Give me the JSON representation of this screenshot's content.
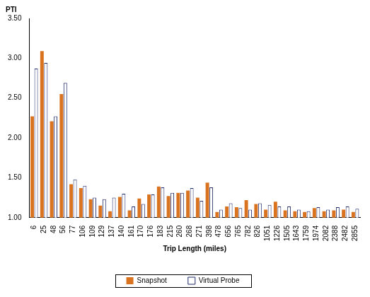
{
  "chart_data": {
    "type": "bar",
    "y_label": "PTI",
    "x_label": "Trip Length (miles)",
    "categories": [
      "6",
      "25",
      "48",
      "56",
      "77",
      "106",
      "109",
      "129",
      "137",
      "140",
      "161",
      "170",
      "176",
      "183",
      "215",
      "260",
      "268",
      "271",
      "398",
      "478",
      "656",
      "765",
      "782",
      "826",
      "1051",
      "1226",
      "1505",
      "1643",
      "1759",
      "1974",
      "2082",
      "2388",
      "2482",
      "2855"
    ],
    "series": [
      {
        "name": "Snapshot",
        "color": "#d9731f",
        "marker": "filled",
        "values": [
          2.27,
          3.09,
          2.21,
          2.55,
          1.42,
          1.37,
          1.23,
          1.15,
          1.08,
          1.26,
          1.09,
          1.24,
          1.29,
          1.39,
          1.27,
          1.31,
          1.34,
          1.25,
          1.44,
          1.07,
          1.14,
          1.13,
          1.22,
          1.17,
          1.1,
          1.2,
          1.09,
          1.08,
          1.07,
          1.12,
          1.08,
          1.09,
          1.1,
          1.07
        ]
      },
      {
        "name": "Virtual Probe",
        "color": "#1f2a6b",
        "marker": "hollow",
        "values": [
          2.87,
          2.94,
          2.27,
          2.69,
          1.48,
          1.4,
          1.25,
          1.23,
          1.25,
          1.3,
          1.14,
          1.17,
          1.29,
          1.38,
          1.31,
          1.31,
          1.37,
          1.21,
          1.38,
          1.1,
          1.18,
          1.12,
          1.1,
          1.18,
          1.16,
          1.14,
          1.14,
          1.1,
          1.08,
          1.13,
          1.1,
          1.13,
          1.14,
          1.11
        ]
      }
    ],
    "ylim": [
      1,
      3.5
    ],
    "yticks": [
      {
        "value": 1,
        "label": "1.00"
      },
      {
        "value": 1.5,
        "label": "1.50"
      },
      {
        "value": 2,
        "label": "2.00"
      },
      {
        "value": 2.5,
        "label": "2.50"
      },
      {
        "value": 3,
        "label": "3.00"
      },
      {
        "value": 3.5,
        "label": "3.50"
      }
    ],
    "grid": false,
    "legend": "bottom"
  }
}
